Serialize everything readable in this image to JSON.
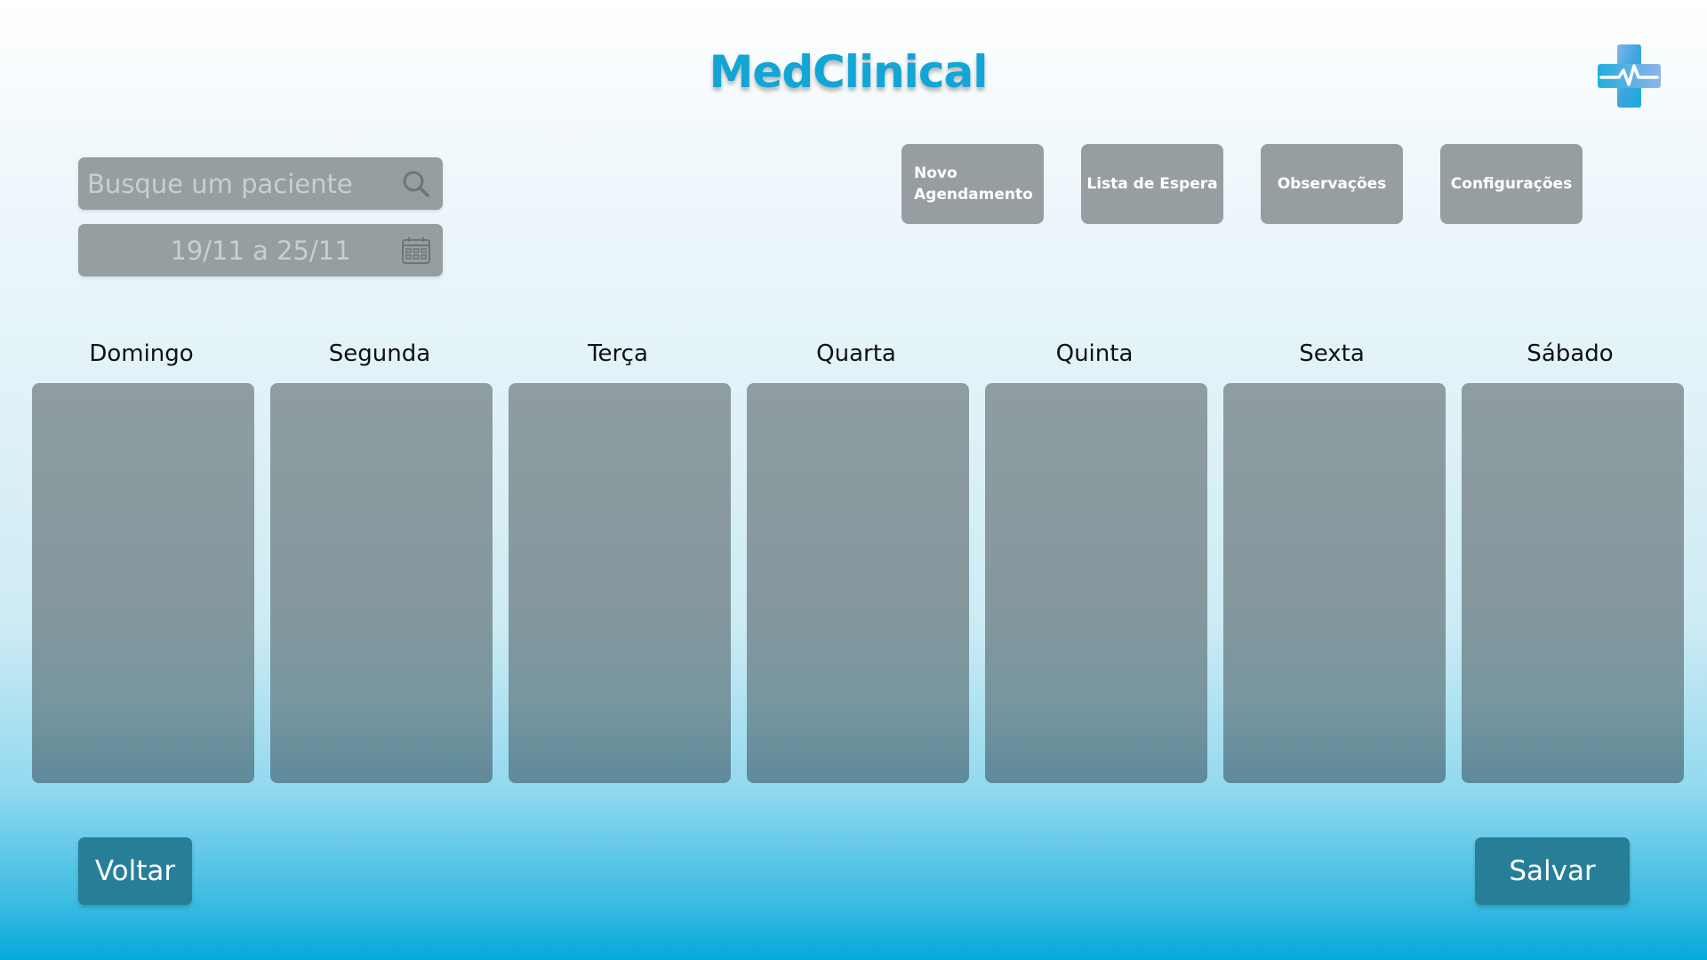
{
  "header": {
    "app_title": "MedClinical",
    "logo_icon": "medical-cross-heartbeat-icon"
  },
  "search": {
    "placeholder": "Busque um paciente",
    "icon": "search-icon"
  },
  "date_range": {
    "value": "19/11 a 25/11",
    "icon": "calendar-icon"
  },
  "actions": {
    "new_appointment_line1": "Novo",
    "new_appointment_line2": "Agendamento",
    "waiting_list": "Lista de Espera",
    "notes": "Observações",
    "settings": "Configurações"
  },
  "week": {
    "days": [
      "Domingo",
      "Segunda",
      "Terça",
      "Quarta",
      "Quinta",
      "Sexta",
      "Sábado"
    ]
  },
  "footer": {
    "back": "Voltar",
    "save": "Salvar"
  },
  "colors": {
    "brand": "#12a5d6",
    "button_gray": "#969ea1",
    "primary_button": "#277f97"
  }
}
